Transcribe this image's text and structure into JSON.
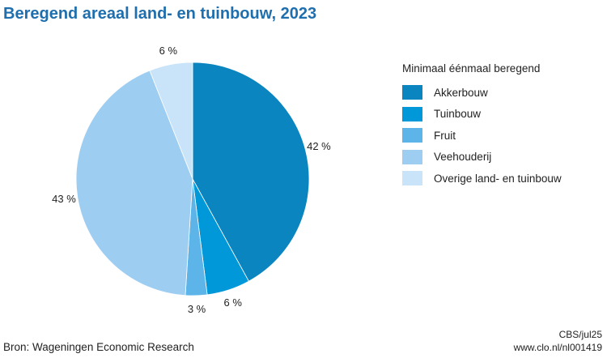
{
  "chart_data": {
    "type": "pie",
    "title": "Beregend areaal land- en tuinbouw, 2023",
    "legend_title": "Minimaal éénmaal beregend",
    "legend_placement": "right",
    "slices": [
      {
        "name": "Akkerbouw",
        "value": 42,
        "label": "42 %",
        "color": "#0a85c0"
      },
      {
        "name": "Tuinbouw",
        "value": 6,
        "label": "6 %",
        "color": "#0098d8"
      },
      {
        "name": "Fruit",
        "value": 3,
        "label": "3 %",
        "color": "#5db4e8"
      },
      {
        "name": "Veehouderij",
        "value": 43,
        "label": "43 %",
        "color": "#9ecdf2"
      },
      {
        "name": "Overige land- en tuinbouw",
        "value": 6,
        "label": "6 %",
        "color": "#c9e4f8"
      }
    ]
  },
  "footer": {
    "source": "Bron: Wageningen Economic Research",
    "credit_line1": "CBS/jul25",
    "credit_line2": "www.clo.nl/nl001419"
  }
}
